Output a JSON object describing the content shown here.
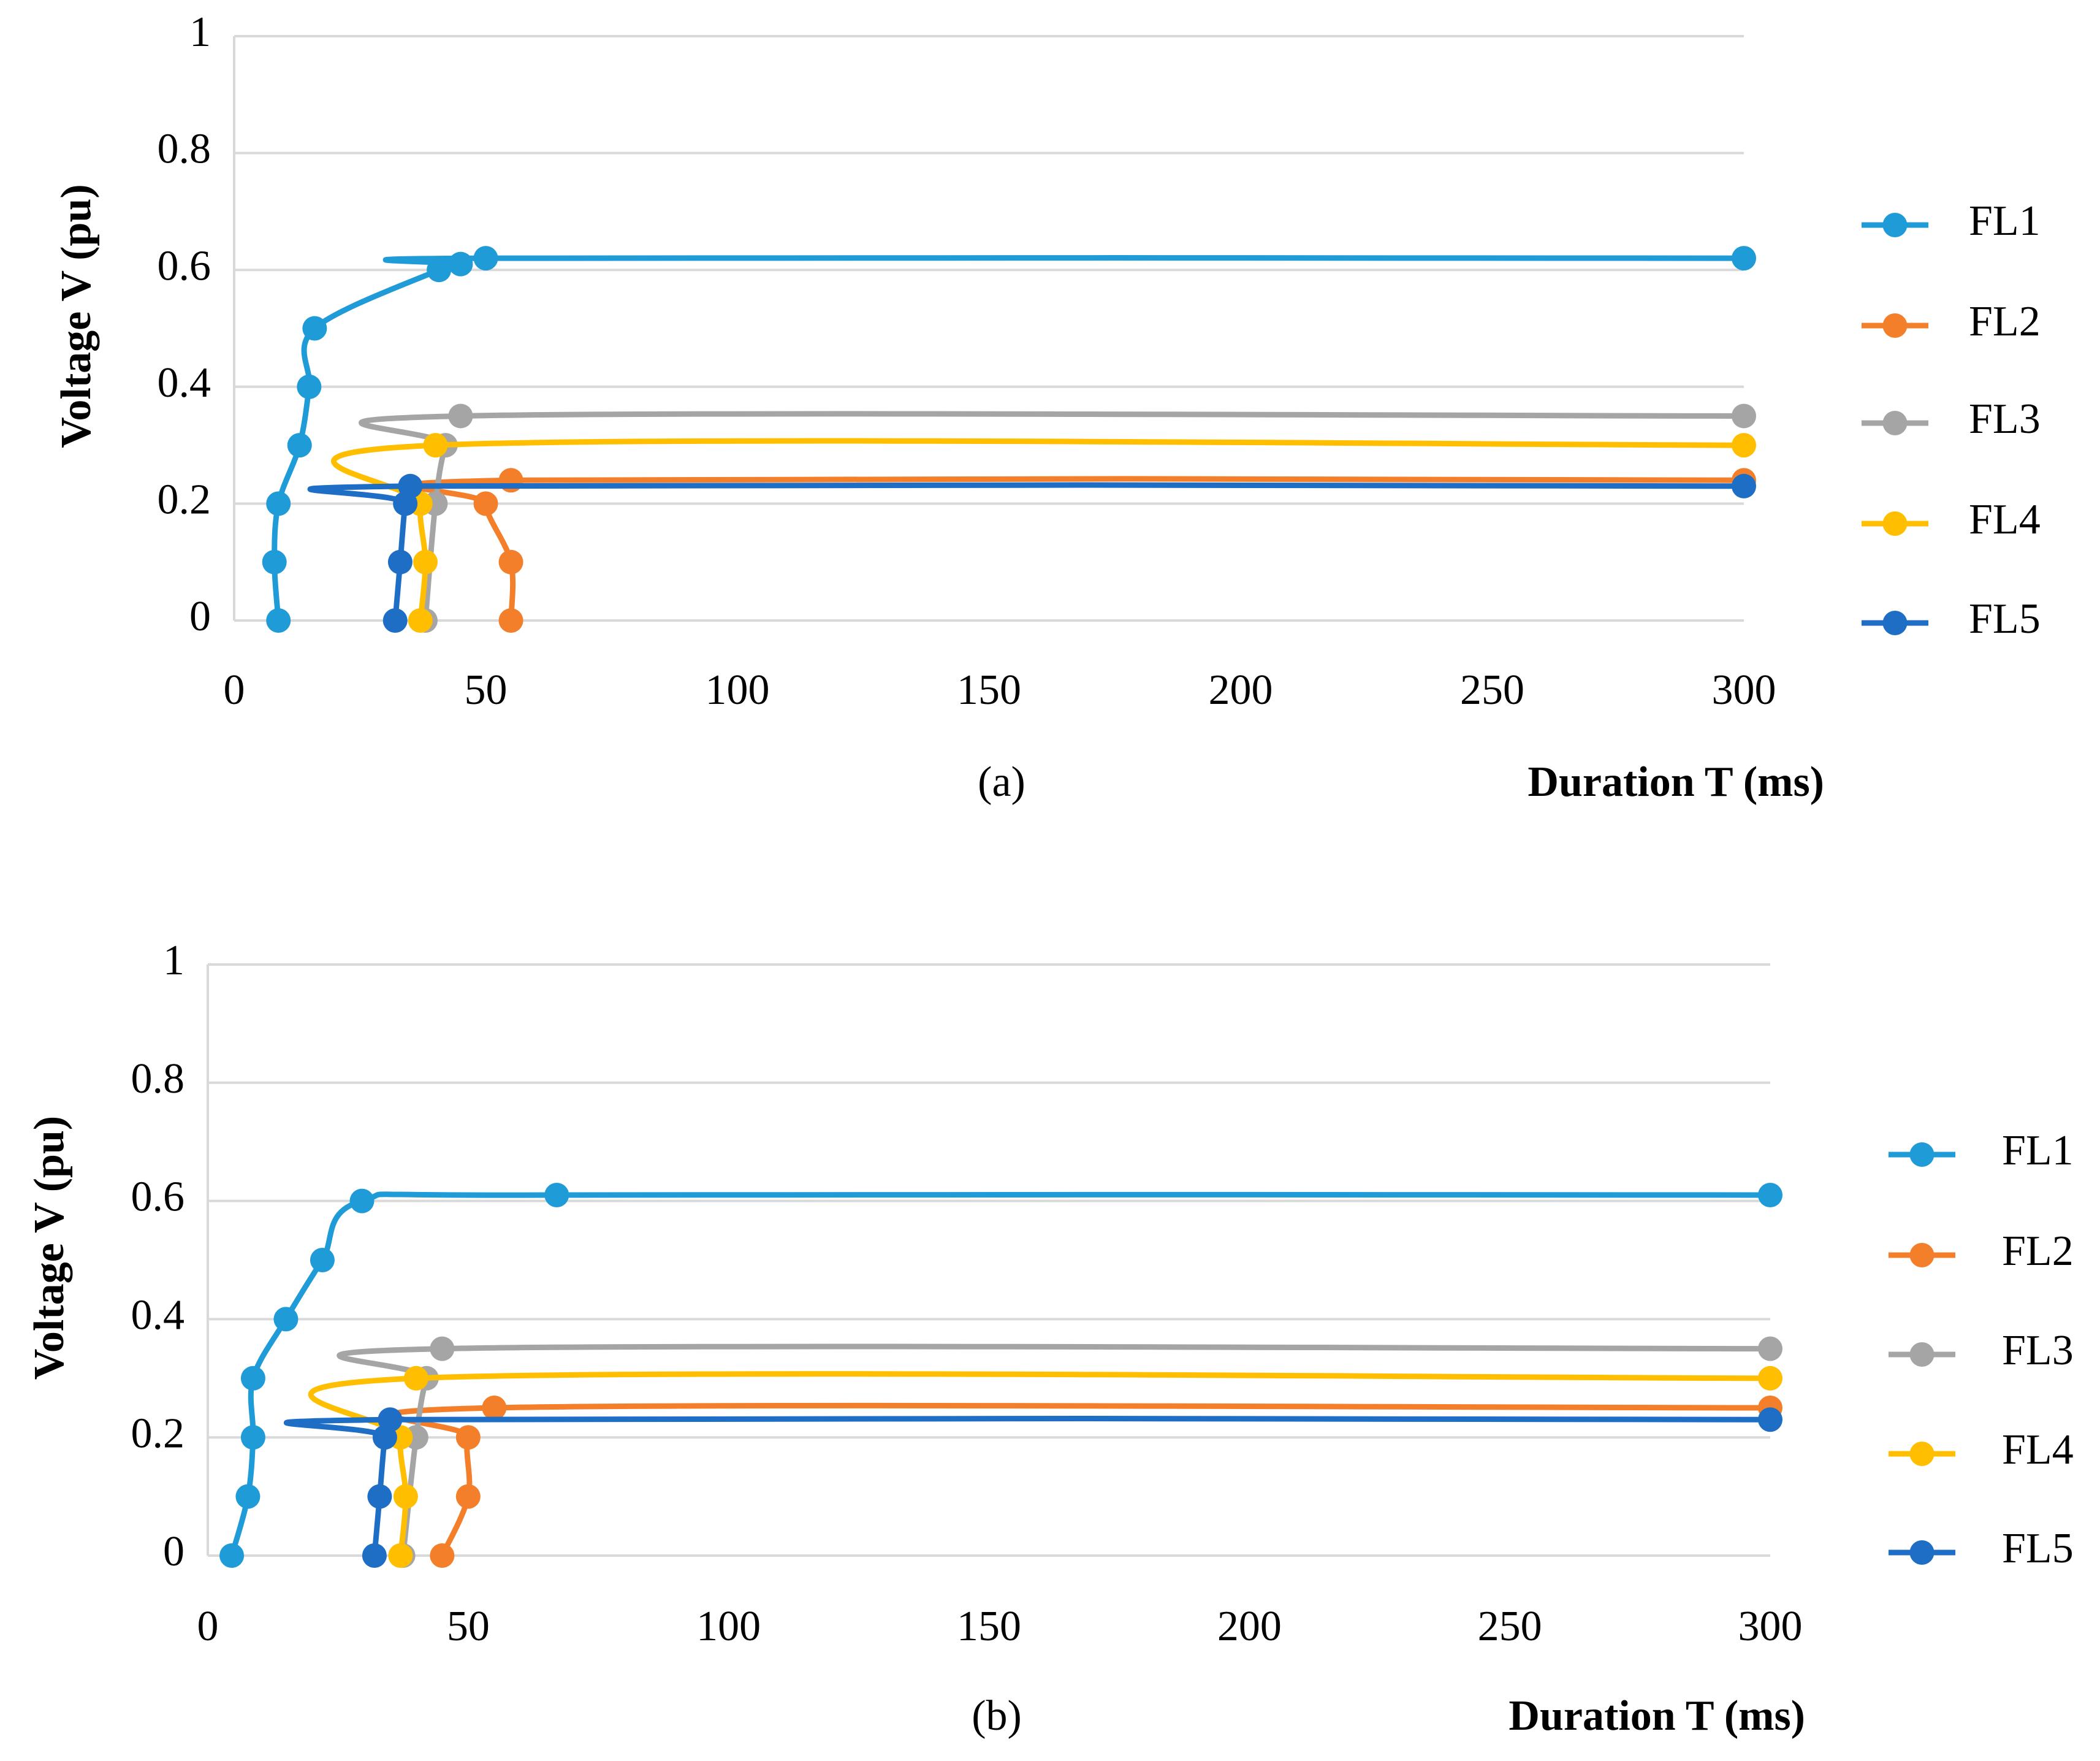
{
  "chart_data": [
    {
      "type": "line",
      "caption": "(a)",
      "xlabel": "Duration T (ms)",
      "ylabel": "Voltage V (pu)",
      "xlim": [
        0,
        300
      ],
      "ylim": [
        0,
        1
      ],
      "xticks": [
        0,
        50,
        100,
        150,
        200,
        250,
        300
      ],
      "yticks": [
        0,
        0.2,
        0.4,
        0.6,
        0.8,
        1
      ],
      "grid": true,
      "legend": "right",
      "smooth": true,
      "series": [
        {
          "name": "FL1",
          "color": "#1f9bd7",
          "x": [
            8.8,
            8,
            8.8,
            13,
            14.9,
            16,
            40.7,
            45,
            50,
            300
          ],
          "values": [
            0,
            0.1,
            0.2,
            0.3,
            0.4,
            0.5,
            0.6,
            0.61,
            0.62,
            0.62
          ]
        },
        {
          "name": "FL2",
          "color": "#f47f2a",
          "x": [
            55,
            55,
            50,
            55,
            300
          ],
          "values": [
            0,
            0.1,
            0.2,
            0.24,
            0.24
          ]
        },
        {
          "name": "FL3",
          "color": "#a5a5a5",
          "x": [
            38,
            40,
            42,
            45,
            300
          ],
          "values": [
            0,
            0.2,
            0.3,
            0.35,
            0.35
          ]
        },
        {
          "name": "FL4",
          "color": "#ffbf00",
          "x": [
            37,
            38,
            37,
            40,
            300
          ],
          "values": [
            0,
            0.1,
            0.2,
            0.3,
            0.3
          ]
        },
        {
          "name": "FL5",
          "color": "#1f6ec6",
          "x": [
            32,
            33,
            34,
            35,
            300
          ],
          "values": [
            0,
            0.1,
            0.2,
            0.23,
            0.23
          ]
        }
      ]
    },
    {
      "type": "line",
      "caption": "(b)",
      "xlabel": "Duration T (ms)",
      "ylabel": "Voltage V (pu)",
      "xlim": [
        0,
        300
      ],
      "ylim": [
        0,
        1
      ],
      "xticks": [
        0,
        50,
        100,
        150,
        200,
        250,
        300
      ],
      "yticks": [
        0,
        0.2,
        0.4,
        0.6,
        0.8,
        1
      ],
      "grid": true,
      "legend": "right",
      "smooth": true,
      "series": [
        {
          "name": "FL1",
          "color": "#1f9bd7",
          "x": [
            4.6,
            7.7,
            8.7,
            8.7,
            15,
            22,
            29.6,
            67,
            300
          ],
          "values": [
            0,
            0.1,
            0.2,
            0.3,
            0.4,
            0.5,
            0.6,
            0.61,
            0.61
          ]
        },
        {
          "name": "FL2",
          "color": "#f47f2a",
          "x": [
            45,
            50,
            50,
            55,
            300
          ],
          "values": [
            0,
            0.1,
            0.2,
            0.25,
            0.25
          ]
        },
        {
          "name": "FL3",
          "color": "#a5a5a5",
          "x": [
            37.5,
            40,
            42,
            45,
            300
          ],
          "values": [
            0,
            0.2,
            0.3,
            0.35,
            0.35
          ]
        },
        {
          "name": "FL4",
          "color": "#ffbf00",
          "x": [
            37,
            38,
            37,
            40,
            300
          ],
          "values": [
            0,
            0.1,
            0.2,
            0.3,
            0.3
          ]
        },
        {
          "name": "FL5",
          "color": "#1f6ec6",
          "x": [
            32,
            33,
            34,
            35,
            300
          ],
          "values": [
            0,
            0.1,
            0.2,
            0.23,
            0.23
          ]
        }
      ]
    }
  ]
}
